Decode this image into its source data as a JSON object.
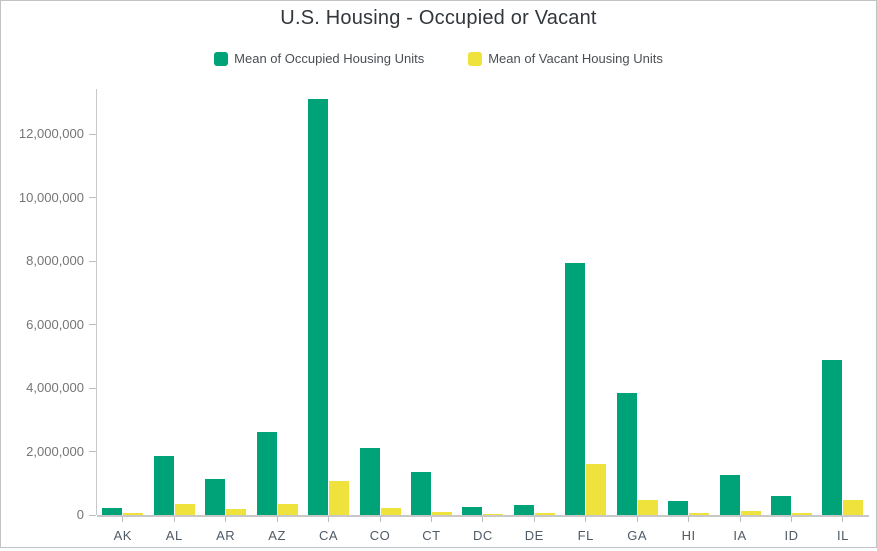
{
  "chart_data": {
    "type": "bar",
    "title": "U.S. Housing - Occupied or Vacant",
    "categories": [
      "AK",
      "AL",
      "AR",
      "AZ",
      "CA",
      "CO",
      "CT",
      "DC",
      "DE",
      "FL",
      "GA",
      "HI",
      "IA",
      "ID",
      "IL"
    ],
    "series": [
      {
        "name": "Mean of Occupied Housing Units",
        "color": "#00a377",
        "values": [
          230000,
          1850000,
          1130000,
          2600000,
          13100000,
          2100000,
          1360000,
          250000,
          330000,
          7950000,
          3850000,
          440000,
          1250000,
          610000,
          4880000
        ]
      },
      {
        "name": "Mean of Vacant Housing Units",
        "color": "#efe23d",
        "values": [
          50000,
          340000,
          180000,
          360000,
          1080000,
          210000,
          110000,
          40000,
          60000,
          1600000,
          480000,
          70000,
          130000,
          70000,
          480000
        ]
      }
    ],
    "xlabel": "",
    "ylabel": "",
    "ylim": [
      0,
      13200000
    ],
    "yticks": [
      0,
      2000000,
      4000000,
      6000000,
      8000000,
      10000000,
      12000000
    ],
    "grid": false,
    "legend_position": "top"
  },
  "colors": {
    "axis_line": "#c8c8c8",
    "tick": "#bdbdbd",
    "y_label_text": "#757575",
    "x_label_text": "#4e5a66",
    "title_text": "#32373c",
    "legend_text": "#4a4f54",
    "border": "#c3c3c3"
  }
}
